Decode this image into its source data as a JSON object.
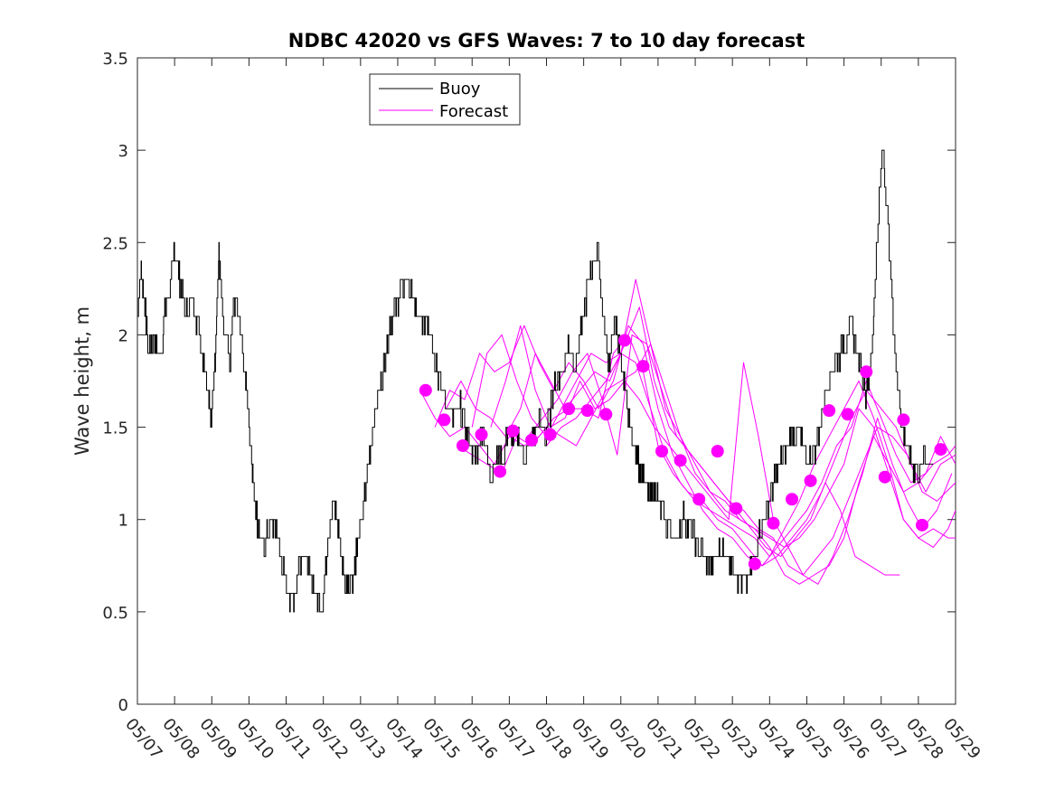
{
  "chart_data": {
    "type": "line",
    "title": "NDBC 42020 vs GFS Waves: 7 to 10 day forecast",
    "ylabel": "Wave height, m",
    "xlabel": "",
    "xlim": [
      0,
      22
    ],
    "ylim": [
      0,
      3.5
    ],
    "x_ticks": [
      {
        "x": 0,
        "label": "05/07"
      },
      {
        "x": 1,
        "label": "05/08"
      },
      {
        "x": 2,
        "label": "05/09"
      },
      {
        "x": 3,
        "label": "05/10"
      },
      {
        "x": 4,
        "label": "05/11"
      },
      {
        "x": 5,
        "label": "05/12"
      },
      {
        "x": 6,
        "label": "05/13"
      },
      {
        "x": 7,
        "label": "05/14"
      },
      {
        "x": 8,
        "label": "05/15"
      },
      {
        "x": 9,
        "label": "05/16"
      },
      {
        "x": 10,
        "label": "05/17"
      },
      {
        "x": 11,
        "label": "05/18"
      },
      {
        "x": 12,
        "label": "05/19"
      },
      {
        "x": 13,
        "label": "05/20"
      },
      {
        "x": 14,
        "label": "05/21"
      },
      {
        "x": 15,
        "label": "05/22"
      },
      {
        "x": 16,
        "label": "05/23"
      },
      {
        "x": 17,
        "label": "05/24"
      },
      {
        "x": 18,
        "label": "05/25"
      },
      {
        "x": 19,
        "label": "05/26"
      },
      {
        "x": 20,
        "label": "05/27"
      },
      {
        "x": 21,
        "label": "05/28"
      },
      {
        "x": 22,
        "label": "05/29"
      }
    ],
    "y_ticks": [
      {
        "y": 0,
        "label": "0"
      },
      {
        "y": 0.5,
        "label": "0.5"
      },
      {
        "y": 1,
        "label": "1"
      },
      {
        "y": 1.5,
        "label": "1.5"
      },
      {
        "y": 2,
        "label": "2"
      },
      {
        "y": 2.5,
        "label": "2.5"
      },
      {
        "y": 3,
        "label": "3"
      },
      {
        "y": 3.5,
        "label": "3.5"
      }
    ],
    "legend": {
      "position": "top-left",
      "entries": [
        {
          "label": "Buoy",
          "color": "#000000"
        },
        {
          "label": "Forecast",
          "color": "#ff00ff"
        }
      ]
    },
    "buoy": {
      "name": "Buoy",
      "color": "#000000",
      "x": [
        0,
        0.1,
        0.2,
        0.3,
        0.45,
        0.6,
        0.75,
        0.9,
        1.0,
        1.15,
        1.3,
        1.5,
        1.7,
        1.9,
        2.0,
        2.1,
        2.2,
        2.3,
        2.5,
        2.6,
        2.75,
        2.9,
        3.0,
        3.1,
        3.2,
        3.3,
        3.45,
        3.6,
        3.75,
        3.9,
        4.05,
        4.2,
        4.35,
        4.5,
        4.65,
        4.8,
        5.0,
        5.15,
        5.3,
        5.45,
        5.6,
        5.8,
        6.0,
        6.15,
        6.3,
        6.5,
        6.65,
        6.8,
        6.95,
        7.1,
        7.25,
        7.4,
        7.6,
        7.8,
        7.95,
        8.1,
        8.3,
        8.5,
        8.7,
        8.9,
        9.1,
        9.3,
        9.5,
        9.7,
        9.85,
        10.0,
        10.2,
        10.4,
        10.6,
        10.8,
        11.0,
        11.2,
        11.4,
        11.6,
        11.8,
        12.0,
        12.2,
        12.4,
        12.55,
        12.7,
        12.85,
        13.0,
        13.15,
        13.3,
        13.5,
        13.65,
        13.8,
        13.95,
        14.1,
        14.3,
        14.5,
        14.7,
        14.9,
        15.1,
        15.3,
        15.5,
        15.7,
        15.9,
        16.1,
        16.3,
        16.5,
        16.7,
        16.9,
        17.05,
        17.2,
        17.4,
        17.6,
        17.8,
        18.0,
        18.2,
        18.4,
        18.6,
        18.8,
        19.0,
        19.2,
        19.4,
        19.6,
        19.75,
        19.9,
        20.05,
        20.2,
        20.35,
        20.45,
        20.55,
        20.7,
        20.85,
        21.0,
        21.2,
        21.4
      ],
      "y": [
        2.1,
        2.35,
        2.2,
        1.9,
        2.0,
        1.85,
        2.1,
        2.3,
        2.45,
        2.3,
        2.1,
        2.2,
        2.0,
        1.75,
        1.55,
        1.9,
        2.45,
        2.1,
        1.85,
        2.2,
        2.1,
        1.8,
        1.55,
        1.3,
        1.05,
        0.9,
        0.85,
        1.0,
        0.95,
        0.75,
        0.6,
        0.55,
        0.75,
        0.85,
        0.7,
        0.6,
        0.55,
        0.95,
        1.1,
        0.9,
        0.65,
        0.7,
        0.95,
        1.15,
        1.45,
        1.7,
        1.85,
        2.05,
        2.15,
        2.25,
        2.3,
        2.2,
        2.05,
        2.1,
        1.95,
        1.8,
        1.65,
        1.55,
        1.6,
        1.45,
        1.35,
        1.5,
        1.25,
        1.35,
        1.3,
        1.5,
        1.45,
        1.35,
        1.4,
        1.55,
        1.45,
        1.7,
        1.8,
        1.95,
        1.85,
        2.1,
        2.35,
        2.45,
        2.05,
        1.85,
        2.1,
        1.9,
        1.65,
        1.45,
        1.3,
        1.2,
        1.1,
        1.15,
        1.05,
        0.95,
        0.9,
        1.0,
        0.95,
        0.85,
        0.8,
        0.75,
        0.85,
        0.8,
        0.72,
        0.65,
        0.7,
        0.9,
        1.05,
        1.15,
        1.25,
        1.35,
        1.45,
        1.5,
        1.3,
        1.35,
        1.55,
        1.75,
        1.85,
        1.95,
        2.05,
        1.9,
        1.7,
        1.85,
        2.5,
        3.05,
        2.6,
        2.0,
        1.75,
        1.55,
        1.4,
        1.3,
        1.25,
        1.35,
        1.3
      ]
    },
    "forecast_series": [
      {
        "name": "Forecast",
        "x": [
          7.6,
          8.0,
          8.4,
          8.8,
          9.2,
          9.6,
          10.0,
          10.4,
          10.8,
          11.2,
          11.6,
          12.0,
          12.4,
          12.8,
          13.2,
          13.6,
          14.0,
          14.4,
          14.8,
          15.2,
          15.6,
          16.0,
          16.4,
          16.8,
          17.2,
          17.6,
          18.0,
          18.4,
          18.8,
          19.2,
          19.6,
          20.0,
          20.4,
          20.8,
          21.2,
          21.6,
          22.0
        ],
        "y": [
          1.7,
          1.55,
          1.45,
          1.5,
          1.4,
          1.3,
          1.45,
          1.4,
          1.45,
          1.55,
          1.6,
          1.6,
          1.55,
          1.9,
          2.0,
          1.8,
          1.4,
          1.25,
          1.15,
          1.1,
          1.0,
          0.95,
          0.85,
          0.75,
          0.8,
          0.9,
          1.0,
          1.15,
          1.35,
          1.55,
          1.7,
          1.6,
          1.5,
          1.3,
          1.15,
          1.3,
          1.35
        ]
      },
      {
        "name": "Forecast",
        "x": [
          8.0,
          8.4,
          8.8,
          9.2,
          9.6,
          10.0,
          10.4,
          10.8,
          11.2,
          11.6,
          12.0,
          12.4,
          12.8,
          13.2,
          13.6,
          14.0,
          14.4,
          14.8,
          15.2,
          15.6,
          16.0,
          16.4,
          16.8,
          17.2,
          17.6,
          18.0,
          18.4,
          18.8,
          19.2,
          19.6,
          20.0,
          20.4,
          20.8,
          21.2,
          21.6,
          22.0
        ],
        "y": [
          1.5,
          1.7,
          1.65,
          1.9,
          1.8,
          1.85,
          2.05,
          1.85,
          1.7,
          1.85,
          1.75,
          1.6,
          1.75,
          2.05,
          1.95,
          1.6,
          1.35,
          1.2,
          1.05,
          0.95,
          0.9,
          0.8,
          0.75,
          0.85,
          0.95,
          1.05,
          1.2,
          1.4,
          1.5,
          1.75,
          1.55,
          1.35,
          1.2,
          1.25,
          1.45,
          1.3
        ]
      },
      {
        "name": "Forecast",
        "x": [
          8.3,
          8.7,
          9.1,
          9.5,
          9.9,
          10.3,
          10.7,
          11.1,
          11.5,
          11.9,
          12.3,
          12.7,
          13.1,
          13.5,
          13.9,
          14.3,
          14.7,
          15.1,
          15.5,
          15.9,
          16.3,
          16.7,
          17.1,
          17.5,
          17.9,
          18.3,
          18.7,
          19.1,
          19.5,
          19.9,
          20.3,
          20.7,
          21.1,
          21.5,
          22.0
        ],
        "y": [
          1.6,
          1.75,
          1.6,
          1.55,
          1.45,
          1.6,
          1.9,
          1.75,
          1.6,
          1.7,
          1.8,
          1.75,
          1.95,
          2.15,
          1.75,
          1.5,
          1.4,
          1.3,
          1.2,
          1.1,
          1.05,
          0.95,
          0.9,
          0.75,
          0.7,
          0.8,
          0.9,
          1.1,
          1.3,
          1.5,
          1.45,
          1.35,
          1.15,
          1.1,
          1.2
        ]
      },
      {
        "name": "Forecast",
        "x": [
          8.6,
          9.0,
          9.4,
          9.8,
          10.2,
          10.6,
          11.0,
          11.4,
          11.8,
          12.2,
          12.6,
          13.0,
          13.4,
          13.8,
          14.2,
          14.6,
          15.0,
          15.4,
          15.8,
          16.2,
          16.6,
          17.0,
          17.4,
          17.8,
          18.2,
          18.6,
          19.0,
          19.4,
          19.8,
          20.2,
          20.6,
          21.0,
          21.4,
          21.8,
          22.0
        ],
        "y": [
          1.4,
          1.35,
          1.3,
          1.25,
          1.45,
          1.4,
          1.5,
          1.45,
          1.4,
          1.55,
          1.7,
          1.75,
          1.8,
          1.95,
          1.7,
          1.45,
          1.3,
          1.15,
          1.05,
          1.0,
          0.95,
          0.85,
          0.7,
          0.65,
          0.7,
          0.75,
          0.9,
          1.2,
          1.45,
          1.3,
          1.0,
          0.9,
          0.85,
          0.95,
          1.05
        ]
      },
      {
        "name": "Forecast",
        "x": [
          9.0,
          9.4,
          9.8,
          10.2,
          10.6,
          11.0,
          11.4,
          11.8,
          12.2,
          12.6,
          13.0,
          13.4,
          13.8,
          14.2,
          14.6,
          15.0,
          15.4,
          15.8,
          16.2,
          16.6,
          17.0,
          17.4,
          17.8,
          18.2,
          18.6,
          19.0,
          19.4,
          19.8,
          20.2,
          20.6,
          21.0,
          21.4,
          21.8,
          22.0
        ],
        "y": [
          1.5,
          1.9,
          2.0,
          1.75,
          1.55,
          1.45,
          1.6,
          1.75,
          1.9,
          1.85,
          1.9,
          2.3,
          1.95,
          1.6,
          1.45,
          1.25,
          1.15,
          1.1,
          1.0,
          0.95,
          0.9,
          0.85,
          0.9,
          1.0,
          1.15,
          1.3,
          1.6,
          1.5,
          1.25,
          1.0,
          0.9,
          0.95,
          0.9,
          0.9
        ]
      },
      {
        "name": "Forecast",
        "x": [
          9.5,
          9.9,
          10.3,
          10.7,
          11.1,
          11.5,
          11.9,
          12.3,
          12.7,
          13.1,
          13.5,
          13.9,
          14.3,
          14.7,
          15.1,
          15.5,
          15.9,
          16.3,
          16.7,
          17.1,
          17.5,
          17.9,
          18.3,
          18.7,
          19.1,
          19.5,
          19.9,
          20.3,
          20.7,
          21.1,
          21.5,
          21.9
        ],
        "y": [
          1.5,
          1.75,
          2.05,
          1.7,
          1.5,
          1.55,
          1.75,
          1.6,
          1.65,
          1.75,
          1.65,
          1.5,
          1.4,
          1.3,
          1.2,
          1.1,
          1.0,
          1.85,
          1.45,
          1.0,
          0.85,
          0.7,
          0.65,
          0.8,
          1.0,
          1.25,
          1.55,
          1.3,
          1.1,
          0.95,
          1.05,
          1.25
        ]
      },
      {
        "name": "Forecast",
        "x": [
          10.5,
          10.9,
          11.3,
          11.7,
          12.1,
          12.5,
          12.9,
          13.3,
          13.7,
          14.1,
          14.5,
          14.9,
          15.3,
          15.7,
          16.1,
          16.5,
          16.9,
          17.3,
          17.7,
          18.1,
          18.5,
          18.9,
          19.3,
          19.7,
          20.1,
          20.5
        ],
        "y": [
          1.45,
          1.55,
          1.65,
          1.8,
          1.9,
          1.65,
          1.35,
          2.0,
          1.95,
          1.7,
          1.45,
          1.35,
          1.25,
          1.15,
          1.05,
          0.95,
          0.85,
          0.8,
          0.9,
          1.0,
          1.2,
          1.05,
          0.8,
          0.75,
          0.7,
          0.7
        ]
      },
      {
        "name": "Forecast",
        "x": [
          11.0,
          11.4,
          11.8,
          12.2,
          12.6,
          13.0,
          13.4,
          13.8,
          14.2,
          14.6,
          15.0,
          15.4,
          15.8,
          16.2,
          16.6,
          17.0,
          17.4,
          17.8,
          18.2,
          18.6,
          19.0,
          19.4,
          19.8,
          20.2,
          20.6,
          21.0,
          21.4,
          21.8,
          22.0
        ],
        "y": [
          1.4,
          1.5,
          1.55,
          1.65,
          1.75,
          1.9,
          1.85,
          1.6,
          1.35,
          1.2,
          1.1,
          1.05,
          1.0,
          0.95,
          0.9,
          0.8,
          0.95,
          1.1,
          1.3,
          1.45,
          1.6,
          1.75,
          1.55,
          1.3,
          1.15,
          1.2,
          1.3,
          1.35,
          1.4
        ]
      }
    ],
    "forecast_points": {
      "name": "Forecast",
      "color": "#ff00ff",
      "x": [
        7.75,
        8.25,
        8.75,
        9.25,
        9.75,
        10.1,
        10.6,
        11.1,
        11.6,
        12.1,
        12.6,
        13.1,
        13.6,
        14.1,
        14.6,
        15.1,
        15.6,
        16.1,
        16.6,
        17.1,
        17.6,
        18.1,
        18.6,
        19.1,
        19.6,
        20.1,
        20.6,
        21.1,
        21.6
      ],
      "y": [
        1.7,
        1.54,
        1.4,
        1.46,
        1.26,
        1.48,
        1.43,
        1.46,
        1.6,
        1.59,
        1.57,
        1.97,
        1.83,
        1.37,
        1.32,
        1.11,
        1.37,
        1.06,
        0.76,
        0.98,
        1.11,
        1.21,
        1.59,
        1.57,
        1.8,
        1.23,
        1.54,
        0.97,
        1.38
      ]
    }
  }
}
